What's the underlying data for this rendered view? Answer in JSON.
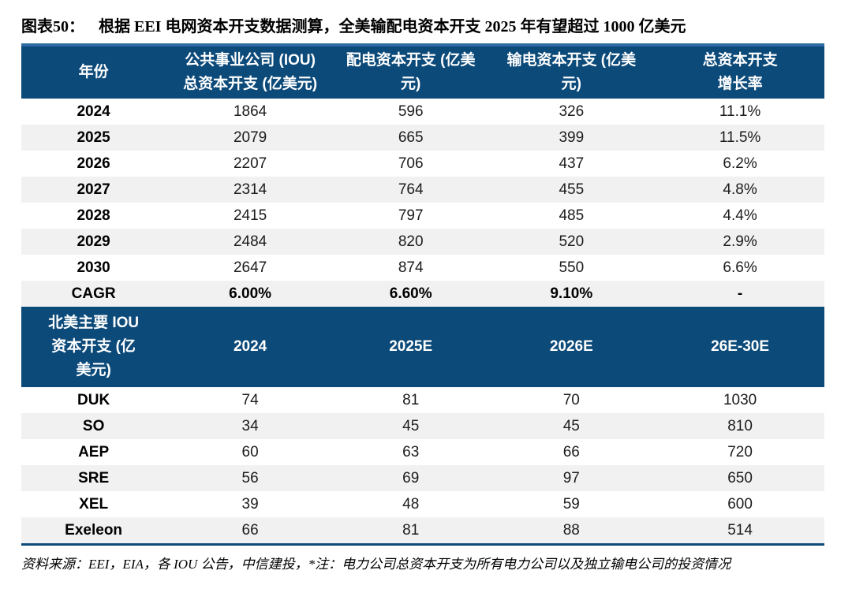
{
  "title": {
    "tag": "图表50：",
    "text": "根据 EEI 电网资本开支数据测算，全美输配电资本开支 2025 年有望超过 1000 亿美元"
  },
  "colors": {
    "header_bg": "#0c4a7a",
    "top_border": "#2d6ca3",
    "stripe": "#f1f1f2",
    "text": "#000000"
  },
  "table1": {
    "headers": [
      "年份",
      "公共事业公司 (IOU)\n总资本开支 (亿美元)",
      "配电资本开支 (亿美\n元)",
      "输电资本开支 (亿美\n元)",
      "总资本开支\n增长率"
    ],
    "rows": [
      {
        "label": "2024",
        "values": [
          "1864",
          "596",
          "326",
          "11.1%"
        ],
        "bold": false
      },
      {
        "label": "2025",
        "values": [
          "2079",
          "665",
          "399",
          "11.5%"
        ],
        "bold": false
      },
      {
        "label": "2026",
        "values": [
          "2207",
          "706",
          "437",
          "6.2%"
        ],
        "bold": false
      },
      {
        "label": "2027",
        "values": [
          "2314",
          "764",
          "455",
          "4.8%"
        ],
        "bold": false
      },
      {
        "label": "2028",
        "values": [
          "2415",
          "797",
          "485",
          "4.4%"
        ],
        "bold": false
      },
      {
        "label": "2029",
        "values": [
          "2484",
          "820",
          "520",
          "2.9%"
        ],
        "bold": false
      },
      {
        "label": "2030",
        "values": [
          "2647",
          "874",
          "550",
          "6.6%"
        ],
        "bold": false
      },
      {
        "label": "CAGR",
        "values": [
          "6.00%",
          "6.60%",
          "9.10%",
          "-"
        ],
        "bold": true
      }
    ]
  },
  "table2": {
    "headers": [
      "北美主要 IOU\n资本开支 (亿\n美元)",
      "2024",
      "2025E",
      "2026E",
      "26E-30E"
    ],
    "rows": [
      {
        "label": "DUK",
        "values": [
          "74",
          "81",
          "70",
          "1030"
        ],
        "bold": false
      },
      {
        "label": "SO",
        "values": [
          "34",
          "45",
          "45",
          "810"
        ],
        "bold": false
      },
      {
        "label": "AEP",
        "values": [
          "60",
          "63",
          "66",
          "720"
        ],
        "bold": false
      },
      {
        "label": "SRE",
        "values": [
          "56",
          "69",
          "97",
          "650"
        ],
        "bold": false
      },
      {
        "label": "XEL",
        "values": [
          "39",
          "48",
          "59",
          "600"
        ],
        "bold": false
      },
      {
        "label": "Exeleon",
        "values": [
          "66",
          "81",
          "88",
          "514"
        ],
        "bold": false
      }
    ]
  },
  "source_note": "资料来源：EEI，EIA，各 IOU 公告，中信建投，*注：电力公司总资本开支为所有电力公司以及独立输电公司的投资情况",
  "chart_data": [
    {
      "type": "table",
      "title": "根据 EEI 电网资本开支数据测算，全美输配电资本开支 2025 年有望超过 1000 亿美元",
      "columns": [
        "年份",
        "公共事业公司 (IOU) 总资本开支 (亿美元)",
        "配电资本开支 (亿美元)",
        "输电资本开支 (亿美元)",
        "总资本开支增长率"
      ],
      "rows": [
        [
          "2024",
          1864,
          596,
          326,
          "11.1%"
        ],
        [
          "2025",
          2079,
          665,
          399,
          "11.5%"
        ],
        [
          "2026",
          2207,
          706,
          437,
          "6.2%"
        ],
        [
          "2027",
          2314,
          764,
          455,
          "4.8%"
        ],
        [
          "2028",
          2415,
          797,
          485,
          "4.4%"
        ],
        [
          "2029",
          2484,
          820,
          520,
          "2.9%"
        ],
        [
          "2030",
          2647,
          874,
          550,
          "6.6%"
        ],
        [
          "CAGR",
          "6.00%",
          "6.60%",
          "9.10%",
          "-"
        ]
      ]
    },
    {
      "type": "table",
      "columns": [
        "北美主要 IOU 资本开支 (亿美元)",
        "2024",
        "2025E",
        "2026E",
        "26E-30E"
      ],
      "rows": [
        [
          "DUK",
          74,
          81,
          70,
          1030
        ],
        [
          "SO",
          34,
          45,
          45,
          810
        ],
        [
          "AEP",
          60,
          63,
          66,
          720
        ],
        [
          "SRE",
          56,
          69,
          97,
          650
        ],
        [
          "XEL",
          39,
          48,
          59,
          600
        ],
        [
          "Exeleon",
          66,
          81,
          88,
          514
        ]
      ]
    }
  ]
}
